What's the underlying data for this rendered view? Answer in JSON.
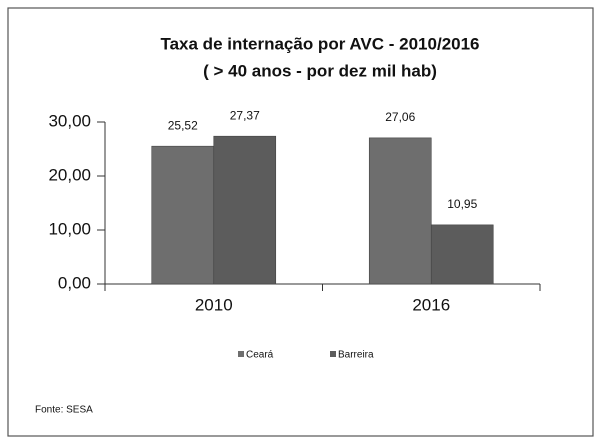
{
  "chart_data": {
    "type": "bar",
    "title": "Taxa de internação por AVC - 2010/2016",
    "subtitle": "( > 40 anos - por dez mil hab)",
    "categories": [
      "2010",
      "2016"
    ],
    "series": [
      {
        "name": "Ceará",
        "color": "#6e6e6e",
        "values": [
          25.52,
          27.06
        ],
        "value_labels": [
          "25,52",
          "27,06"
        ]
      },
      {
        "name": "Barreira",
        "color": "#5c5c5c",
        "values": [
          27.37,
          10.95
        ],
        "value_labels": [
          "27,37",
          "10,95"
        ]
      }
    ],
    "ylim": [
      0,
      30
    ],
    "yticks": [
      {
        "value": 0,
        "label": "0,00"
      },
      {
        "value": 10,
        "label": "10,00"
      },
      {
        "value": 20,
        "label": "20,00"
      },
      {
        "value": 30,
        "label": "30,00"
      }
    ],
    "grid": false,
    "legend": "bottom",
    "source": "Fonte: SESA"
  }
}
